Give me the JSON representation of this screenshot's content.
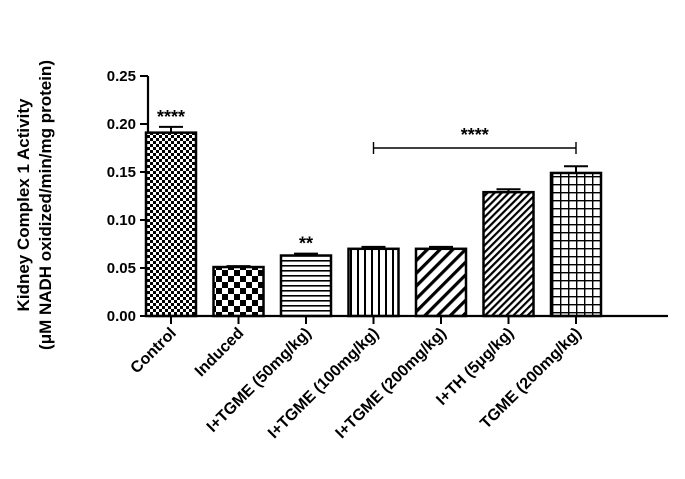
{
  "chart_data": {
    "type": "bar",
    "title": "",
    "ylabel_line1": "Kidney Complex 1 Activity",
    "ylabel_line2": "(μM NADH oxidized/min/mg protein)",
    "xlabel": "",
    "ylim": [
      0,
      0.25
    ],
    "yticks": [
      "0.00",
      "0.05",
      "0.10",
      "0.15",
      "0.20",
      "0.25"
    ],
    "ytick_values": [
      0,
      0.05,
      0.1,
      0.15,
      0.2,
      0.25
    ],
    "grid": false,
    "categories": [
      "Control",
      "Induced",
      "I+TGME (50mg/kg)",
      "I+TGME (100mg/kg)",
      "I+TGME (200mg/kg)",
      "I+TH (5μg/kg)",
      "TGME (200mg/kg)"
    ],
    "series": [
      {
        "values": [
          0.191,
          0.051,
          0.063,
          0.07,
          0.07,
          0.129,
          0.149
        ],
        "errors": [
          0.006,
          0.001,
          0.002,
          0.002,
          0.002,
          0.003,
          0.007
        ],
        "patterns": [
          "checker-fine",
          "checker-large",
          "horizontal-lines",
          "vertical-lines",
          "diagonal-wide",
          "diagonal-dense",
          "grid"
        ]
      }
    ],
    "annotations": [
      {
        "text": "****",
        "category": "Control"
      },
      {
        "text": "**",
        "category": "I+TGME (50mg/kg)"
      },
      {
        "text": "****",
        "bracket_from": "I+TGME (100mg/kg)",
        "bracket_to": "TGME (200mg/kg)"
      }
    ],
    "colors": {
      "bar_stroke": "#000000",
      "pattern": "#000000",
      "background": "#ffffff"
    }
  }
}
